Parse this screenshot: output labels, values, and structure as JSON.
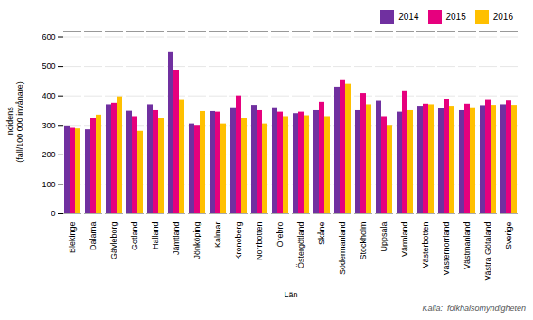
{
  "chart_data": {
    "type": "bar",
    "categories": [
      "Blekinge",
      "Dalarna",
      "Gävleborg",
      "Gotland",
      "Halland",
      "Jämtland",
      "Jönköping",
      "Kalmar",
      "Kronoberg",
      "Norrbotten",
      "Örebro",
      "Östergötland",
      "Skåne",
      "Södermanland",
      "Stockholm",
      "Uppsala",
      "Värmland",
      "Västerbotten",
      "Västernorrland",
      "Västmanland",
      "Västra Götaland",
      "Sverige"
    ],
    "series": [
      {
        "name": "2014",
        "color": "#7030a0",
        "values": [
          298,
          285,
          370,
          348,
          370,
          550,
          305,
          347,
          360,
          368,
          360,
          340,
          350,
          430,
          350,
          382,
          345,
          365,
          358,
          350,
          367,
          370
        ]
      },
      {
        "name": "2015",
        "color": "#e6007e",
        "values": [
          290,
          325,
          375,
          330,
          350,
          488,
          300,
          345,
          400,
          350,
          345,
          345,
          378,
          455,
          408,
          330,
          415,
          372,
          388,
          372,
          385,
          383
        ]
      },
      {
        "name": "2016",
        "color": "#ffc000",
        "values": [
          288,
          335,
          397,
          280,
          325,
          385,
          347,
          305,
          325,
          305,
          330,
          333,
          330,
          440,
          370,
          300,
          350,
          370,
          365,
          360,
          368,
          368
        ]
      }
    ],
    "ylabel": "Incidens\n(fall/100 000 invånare)",
    "xlabel": "Län",
    "source": "Källa:  folkhälsomyndigheten",
    "ylim": [
      0,
      620
    ],
    "yticks": [
      0,
      100,
      200,
      300,
      400,
      500,
      600
    ],
    "grid": true,
    "legend": "upper right"
  }
}
